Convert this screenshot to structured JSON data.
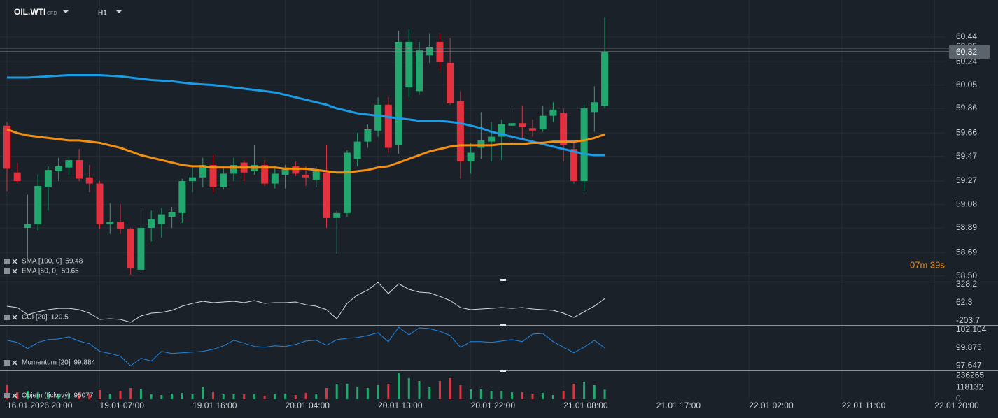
{
  "header": {
    "symbol": "OIL.WTI",
    "instrument": "CFD",
    "timeframe": "H1"
  },
  "countdown": "07m 39s",
  "chart_data": [
    {
      "type": "candlestick",
      "up_color": "#22a86e",
      "down_color": "#e2323f",
      "grid": true,
      "xlim": [
        -0.68,
        91
      ],
      "xticks": [
        {
          "value": 0,
          "label": "16.01.2026  20:00"
        },
        {
          "value": 9,
          "label": "19.01  07:00"
        },
        {
          "value": 18,
          "label": "19.01  16:00"
        },
        {
          "value": 27,
          "label": "20.01  04:00"
        },
        {
          "value": 36,
          "label": "20.01  13:00"
        },
        {
          "value": 45,
          "label": "20.01  22:00"
        },
        {
          "value": 54,
          "label": "21.01  08:00"
        },
        {
          "value": 63,
          "label": "21.01  17:00"
        },
        {
          "value": 72,
          "label": "22.01  02:00"
        },
        {
          "value": 81,
          "label": "22.01  11:00"
        },
        {
          "value": 90,
          "label": "22.01  20:00"
        }
      ],
      "ylim": [
        58.47,
        60.74
      ],
      "yticks": [
        60.44,
        60.24,
        60.05,
        59.86,
        59.66,
        59.47,
        59.27,
        59.08,
        58.89,
        58.69,
        {
          "value": 58.5,
          "label": "58.50"
        }
      ],
      "ask_price": 60.35,
      "last_price": 60.32,
      "open": [
        59.72,
        59.34,
        58.89,
        58.92,
        59.22,
        59.35,
        59.38,
        59.44,
        59.3,
        59.25,
        58.92,
        58.94,
        58.88,
        58.55,
        58.89,
        58.92,
        58.98,
        59.01,
        59.27,
        59.3,
        59.4,
        59.22,
        59.33,
        59.42,
        59.35,
        59.4,
        59.25,
        59.32,
        59.39,
        59.32,
        59.28,
        59.34,
        58.97,
        59.01,
        59.45,
        59.59,
        59.68,
        59.89,
        59.56,
        60.03,
        60.0,
        60.29,
        60.4,
        60.23,
        59.92,
        59.43,
        59.54,
        59.59,
        59.63,
        59.72,
        59.74,
        59.7,
        59.69,
        59.8,
        59.82,
        59.53,
        59.27,
        59.83,
        59.88
      ],
      "high": [
        59.75,
        59.42,
        59.16,
        59.32,
        59.39,
        59.46,
        59.46,
        59.53,
        59.4,
        59.27,
        59.09,
        59.08,
        58.89,
        59.03,
        59.03,
        59.05,
        59.06,
        59.29,
        59.39,
        59.46,
        59.48,
        59.39,
        59.46,
        59.44,
        59.56,
        59.44,
        59.39,
        59.4,
        59.43,
        59.39,
        59.39,
        59.56,
        59.03,
        59.52,
        59.66,
        59.73,
        59.95,
        59.95,
        60.49,
        60.5,
        60.4,
        60.47,
        60.47,
        60.43,
        60.0,
        59.58,
        59.83,
        59.75,
        59.77,
        59.86,
        59.88,
        59.77,
        59.88,
        59.91,
        59.86,
        59.58,
        59.89,
        60.04,
        60.6
      ],
      "low": [
        59.19,
        59.25,
        58.64,
        58.87,
        59.03,
        59.27,
        59.32,
        59.27,
        59.18,
        58.88,
        58.84,
        58.84,
        58.51,
        58.52,
        58.78,
        58.81,
        58.89,
        58.93,
        59.18,
        59.22,
        59.18,
        59.2,
        59.27,
        59.27,
        59.32,
        59.23,
        59.21,
        59.21,
        59.31,
        59.23,
        59.22,
        58.89,
        58.68,
        58.98,
        59.39,
        59.54,
        59.63,
        59.5,
        59.49,
        59.95,
        59.97,
        60.23,
        60.17,
        59.89,
        59.29,
        59.33,
        59.45,
        59.43,
        59.44,
        59.6,
        59.6,
        59.63,
        59.67,
        59.75,
        59.43,
        59.25,
        59.19,
        59.67,
        59.86
      ],
      "close": [
        59.37,
        59.27,
        58.92,
        59.23,
        59.36,
        59.39,
        59.44,
        59.29,
        59.25,
        58.92,
        58.94,
        58.88,
        58.56,
        58.89,
        58.96,
        59.0,
        59.02,
        59.27,
        59.3,
        59.4,
        59.22,
        59.33,
        59.4,
        59.34,
        59.4,
        59.25,
        59.33,
        59.38,
        59.33,
        59.3,
        59.35,
        58.97,
        59.01,
        59.5,
        59.59,
        59.69,
        59.89,
        59.54,
        60.4,
        60.4,
        60.33,
        60.36,
        60.24,
        59.9,
        59.43,
        59.5,
        59.6,
        59.63,
        59.73,
        59.74,
        59.71,
        59.68,
        59.8,
        59.85,
        59.56,
        59.27,
        59.86,
        59.91,
        60.32
      ],
      "series": [
        {
          "name": "SMA [100,  0]",
          "color": "#1a9be6",
          "values": [
            60.11,
            60.11,
            60.11,
            60.115,
            60.12,
            60.125,
            60.13,
            60.13,
            60.13,
            60.13,
            60.125,
            60.12,
            60.11,
            60.1,
            60.09,
            60.085,
            60.08,
            60.07,
            60.06,
            60.055,
            60.05,
            60.04,
            60.03,
            60.02,
            60.01,
            60.0,
            59.99,
            59.97,
            59.95,
            59.93,
            59.91,
            59.89,
            59.86,
            59.84,
            59.82,
            59.81,
            59.8,
            59.79,
            59.78,
            59.77,
            59.76,
            59.76,
            59.76,
            59.75,
            59.74,
            59.72,
            59.7,
            59.67,
            59.65,
            59.63,
            59.61,
            59.59,
            59.57,
            59.55,
            59.53,
            59.51,
            59.49,
            59.48,
            59.48
          ]
        },
        {
          "name": "EMA [50,  0]",
          "color": "#f39012",
          "values": [
            59.69,
            59.66,
            59.64,
            59.63,
            59.62,
            59.61,
            59.6,
            59.6,
            59.59,
            59.58,
            59.56,
            59.54,
            59.51,
            59.48,
            59.46,
            59.44,
            59.42,
            59.4,
            59.39,
            59.39,
            59.38,
            59.38,
            59.38,
            59.38,
            59.38,
            59.38,
            59.38,
            59.37,
            59.37,
            59.37,
            59.36,
            59.35,
            59.34,
            59.34,
            59.35,
            59.36,
            59.38,
            59.39,
            59.42,
            59.45,
            59.48,
            59.51,
            59.53,
            59.55,
            59.56,
            59.56,
            59.56,
            59.56,
            59.57,
            59.57,
            59.57,
            59.58,
            59.58,
            59.59,
            59.59,
            59.59,
            59.6,
            59.62,
            59.65
          ]
        }
      ]
    },
    {
      "type": "line",
      "name": "CCI [20]",
      "color": "#d4d8dc",
      "ylim": [
        -265,
        390
      ],
      "yticks": [
        328.2,
        62.3,
        -203.7
      ],
      "values": [
        11,
        -9,
        -112,
        -71,
        -40,
        -20,
        -20,
        -40,
        -91,
        -183,
        -173,
        -183,
        -224,
        -132,
        -91,
        -81,
        -50,
        11,
        52,
        83,
        62,
        73,
        83,
        62,
        93,
        52,
        62,
        62,
        73,
        32,
        11,
        -40,
        -173,
        52,
        175,
        246,
        359,
        195,
        339,
        257,
        216,
        206,
        154,
        93,
        -9,
        -40,
        -30,
        -20,
        -9,
        -20,
        -9,
        -30,
        -40,
        -50,
        -91,
        -153,
        -71,
        11,
        120.5
      ]
    },
    {
      "type": "line",
      "name": "Momentum [20]",
      "color": "#1e88e5",
      "ylim": [
        97.09,
        102.62
      ],
      "yticks": [
        102.104,
        99.875,
        97.647
      ],
      "values": [
        100.82,
        100.56,
        99.79,
        100.56,
        100.9,
        100.99,
        101.25,
        100.73,
        100.39,
        99.45,
        99.19,
        98.85,
        97.65,
        98.59,
        98.25,
        99.45,
        99.19,
        99.28,
        99.36,
        99.45,
        99.7,
        100.13,
        100.82,
        100.48,
        100.05,
        99.96,
        100.13,
        100.05,
        100.3,
        100.73,
        100.82,
        100.22,
        100.9,
        101.07,
        101.16,
        101.42,
        101.76,
        100.65,
        102.45,
        101.5,
        102.36,
        102.27,
        101.93,
        101.42,
        99.96,
        100.65,
        100.65,
        100.56,
        100.73,
        100.9,
        100.65,
        101.59,
        101.67,
        100.65,
        99.96,
        99.28,
        99.96,
        100.82,
        99.884
      ]
    },
    {
      "type": "bar",
      "name": "Objem (tickový)",
      "ylim": [
        0,
        280000
      ],
      "yticks": [
        236265,
        118132,
        0
      ],
      "values": [
        140000,
        70000,
        84000,
        70000,
        70000,
        56000,
        63000,
        63000,
        49000,
        91000,
        56000,
        84000,
        112000,
        98000,
        49000,
        42000,
        56000,
        63000,
        49000,
        126000,
        70000,
        49000,
        49000,
        49000,
        49000,
        35000,
        49000,
        56000,
        42000,
        63000,
        56000,
        112000,
        154000,
        154000,
        126000,
        112000,
        140000,
        154000,
        259000,
        210000,
        182000,
        126000,
        182000,
        210000,
        140000,
        98000,
        98000,
        84000,
        84000,
        70000,
        70000,
        56000,
        63000,
        42000,
        84000,
        154000,
        175000,
        140000,
        95077
      ]
    }
  ]
}
